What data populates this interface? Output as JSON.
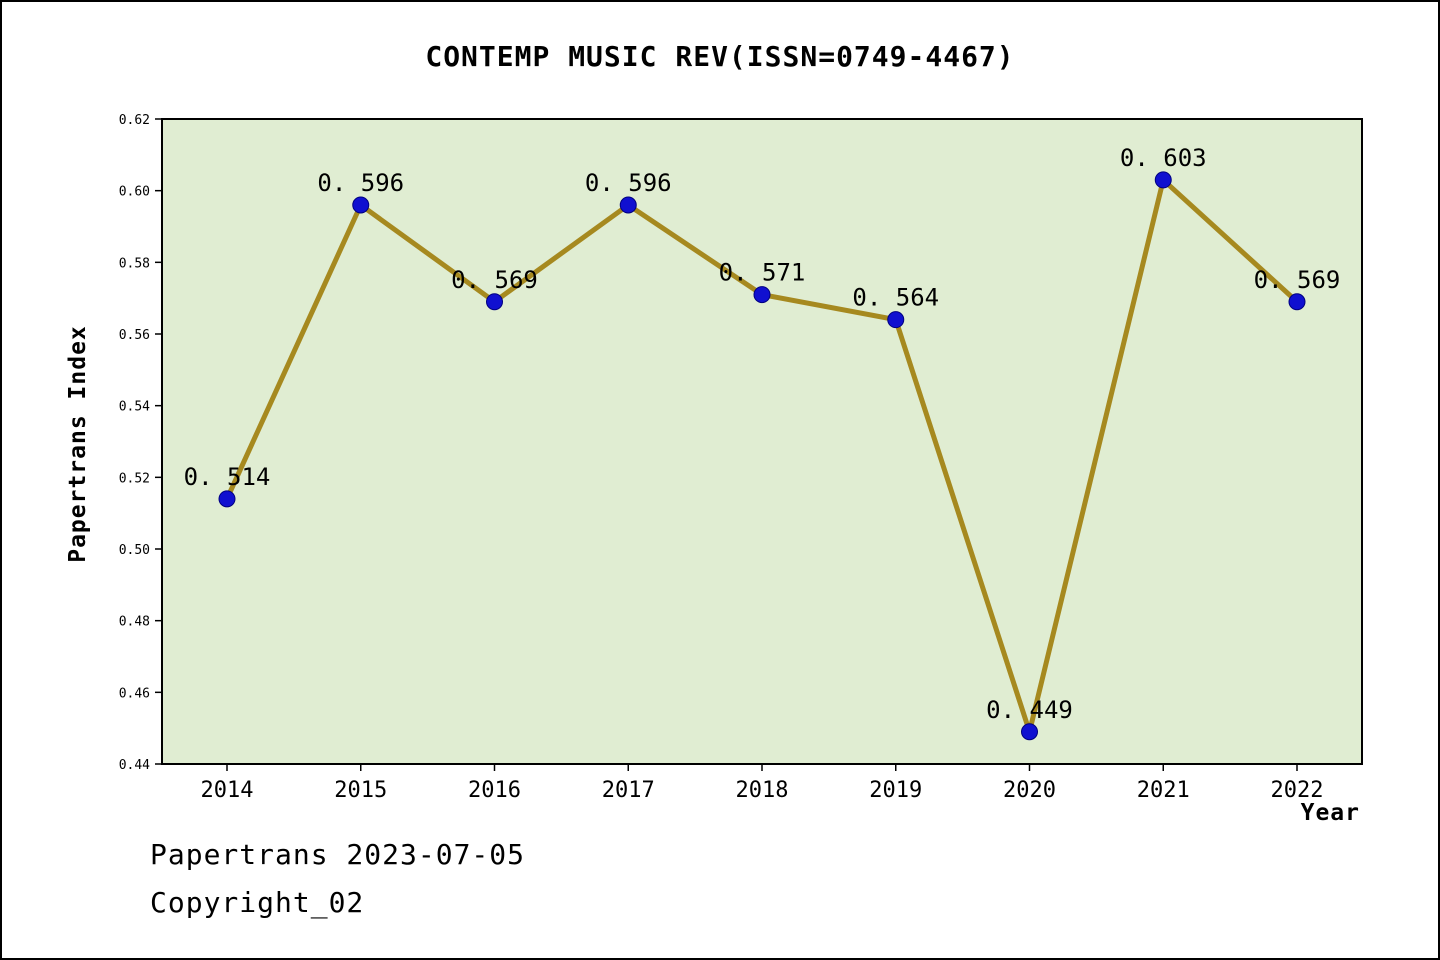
{
  "title": "CONTEMP MUSIC REV(ISSN=0749-4467)",
  "footer": {
    "line1": "Papertrans 2023-07-05",
    "line2": "Copyright_02"
  },
  "chart_data": {
    "type": "line",
    "title": "CONTEMP MUSIC REV(ISSN=0749-4467)",
    "x": [
      "2014",
      "2015",
      "2016",
      "2017",
      "2018",
      "2019",
      "2020",
      "2021",
      "2022"
    ],
    "values": [
      0.514,
      0.596,
      0.569,
      0.596,
      0.571,
      0.564,
      0.449,
      0.603,
      0.569
    ],
    "point_labels": [
      "0. 514",
      "0. 596",
      "0. 569",
      "0. 596",
      "0. 571",
      "0. 564",
      "0. 449",
      "0. 603",
      "0. 569"
    ],
    "xlabel": "Year",
    "ylabel": "Papertrans Index",
    "ylim": [
      0.44,
      0.62
    ],
    "yticks": [
      "0.44",
      "0.46",
      "0.48",
      "0.50",
      "0.52",
      "0.54",
      "0.56",
      "0.58",
      "0.60",
      "0.62"
    ],
    "grid": false,
    "legend_position": "none",
    "colors": {
      "line": "#a6891f",
      "marker_fill": "#1010d0",
      "marker_edge": "#000080",
      "plot_bg": "#e0edd2",
      "axis": "#000000"
    }
  }
}
